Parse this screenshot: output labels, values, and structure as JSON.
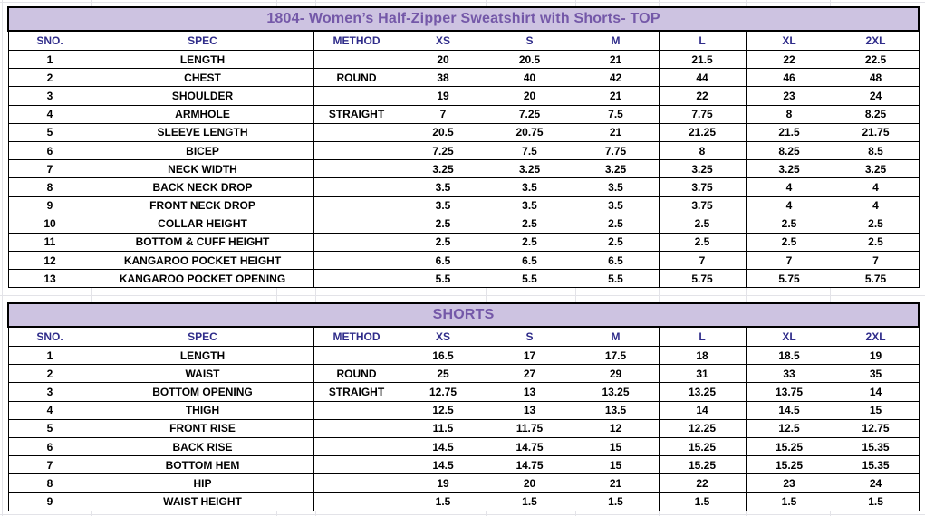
{
  "colors": {
    "title_bg": "#cdc3e1",
    "title_text": "#7458a8",
    "header_text": "#2f2c8a",
    "cell_text": "#000000",
    "border": "#000000",
    "gridline": "#e3e3e8"
  },
  "tables": [
    {
      "title": "1804- Women’s Half-Zipper Sweatshirt with Shorts- TOP",
      "columns": [
        "SNO.",
        "SPEC",
        "METHOD",
        "XS",
        "S",
        "M",
        "L",
        "XL",
        "2XL"
      ],
      "rows": [
        [
          "1",
          "LENGTH",
          "",
          "20",
          "20.5",
          "21",
          "21.5",
          "22",
          "22.5"
        ],
        [
          "2",
          "CHEST",
          "ROUND",
          "38",
          "40",
          "42",
          "44",
          "46",
          "48"
        ],
        [
          "3",
          "SHOULDER",
          "",
          "19",
          "20",
          "21",
          "22",
          "23",
          "24"
        ],
        [
          "4",
          "ARMHOLE",
          "STRAIGHT",
          "7",
          "7.25",
          "7.5",
          "7.75",
          "8",
          "8.25"
        ],
        [
          "5",
          "SLEEVE LENGTH",
          "",
          "20.5",
          "20.75",
          "21",
          "21.25",
          "21.5",
          "21.75"
        ],
        [
          "6",
          "BICEP",
          "",
          "7.25",
          "7.5",
          "7.75",
          "8",
          "8.25",
          "8.5"
        ],
        [
          "7",
          "NECK WIDTH",
          "",
          "3.25",
          "3.25",
          "3.25",
          "3.25",
          "3.25",
          "3.25"
        ],
        [
          "8",
          "BACK NECK DROP",
          "",
          "3.5",
          "3.5",
          "3.5",
          "3.75",
          "4",
          "4"
        ],
        [
          "9",
          "FRONT NECK DROP",
          "",
          "3.5",
          "3.5",
          "3.5",
          "3.75",
          "4",
          "4"
        ],
        [
          "10",
          "COLLAR HEIGHT",
          "",
          "2.5",
          "2.5",
          "2.5",
          "2.5",
          "2.5",
          "2.5"
        ],
        [
          "11",
          "BOTTOM & CUFF HEIGHT",
          "",
          "2.5",
          "2.5",
          "2.5",
          "2.5",
          "2.5",
          "2.5"
        ],
        [
          "12",
          "KANGAROO POCKET HEIGHT",
          "",
          "6.5",
          "6.5",
          "6.5",
          "7",
          "7",
          "7"
        ],
        [
          "13",
          "KANGAROO POCKET OPENING",
          "",
          "5.5",
          "5.5",
          "5.5",
          "5.75",
          "5.75",
          "5.75"
        ]
      ]
    },
    {
      "title": "SHORTS",
      "columns": [
        "SNO.",
        "SPEC",
        "METHOD",
        "XS",
        "S",
        "M",
        "L",
        "XL",
        "2XL"
      ],
      "rows": [
        [
          "1",
          "LENGTH",
          "",
          "16.5",
          "17",
          "17.5",
          "18",
          "18.5",
          "19"
        ],
        [
          "2",
          "WAIST",
          "ROUND",
          "25",
          "27",
          "29",
          "31",
          "33",
          "35"
        ],
        [
          "3",
          "BOTTOM OPENING",
          "STRAIGHT",
          "12.75",
          "13",
          "13.25",
          "13.25",
          "13.75",
          "14"
        ],
        [
          "4",
          "THIGH",
          "",
          "12.5",
          "13",
          "13.5",
          "14",
          "14.5",
          "15"
        ],
        [
          "5",
          "FRONT RISE",
          "",
          "11.5",
          "11.75",
          "12",
          "12.25",
          "12.5",
          "12.75"
        ],
        [
          "6",
          "BACK RISE",
          "",
          "14.5",
          "14.75",
          "15",
          "15.25",
          "15.25",
          "15.35"
        ],
        [
          "7",
          "BOTTOM HEM",
          "",
          "14.5",
          "14.75",
          "15",
          "15.25",
          "15.25",
          "15.35"
        ],
        [
          "8",
          "HIP",
          "",
          "19",
          "20",
          "21",
          "22",
          "23",
          "24"
        ],
        [
          "9",
          "WAIST HEIGHT",
          "",
          "1.5",
          "1.5",
          "1.5",
          "1.5",
          "1.5",
          "1.5"
        ]
      ]
    }
  ]
}
